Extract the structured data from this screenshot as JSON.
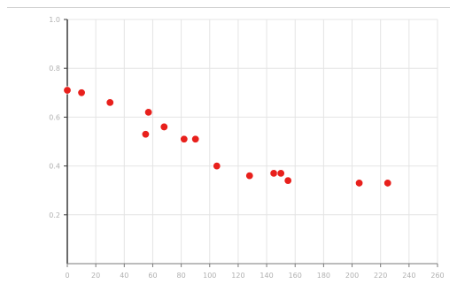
{
  "chart_data": {
    "type": "scatter",
    "title": "",
    "xlabel": "",
    "ylabel": "",
    "xlim": [
      0,
      260
    ],
    "ylim": [
      0,
      1.0
    ],
    "x_ticks": [
      0,
      20,
      40,
      60,
      80,
      100,
      120,
      140,
      160,
      180,
      200,
      220,
      240,
      260
    ],
    "y_ticks": [
      0.2,
      0.4,
      0.6,
      0.8,
      1.0
    ],
    "grid": true,
    "series": [
      {
        "color": "#e8201c",
        "points": [
          {
            "x": 0,
            "y": 0.71
          },
          {
            "x": 10,
            "y": 0.7
          },
          {
            "x": 30,
            "y": 0.66
          },
          {
            "x": 55,
            "y": 0.53
          },
          {
            "x": 57,
            "y": 0.62
          },
          {
            "x": 68,
            "y": 0.56
          },
          {
            "x": 82,
            "y": 0.51
          },
          {
            "x": 90,
            "y": 0.51
          },
          {
            "x": 105,
            "y": 0.4
          },
          {
            "x": 128,
            "y": 0.36
          },
          {
            "x": 145,
            "y": 0.37
          },
          {
            "x": 150,
            "y": 0.37
          },
          {
            "x": 155,
            "y": 0.34
          },
          {
            "x": 205,
            "y": 0.33
          },
          {
            "x": 225,
            "y": 0.33
          }
        ]
      }
    ]
  },
  "style": {
    "point_color": "#e8201c",
    "axis_color": "#3a3a3a",
    "grid_color": "#e4e4e4",
    "tick_label_color": "#b0b0b0"
  }
}
